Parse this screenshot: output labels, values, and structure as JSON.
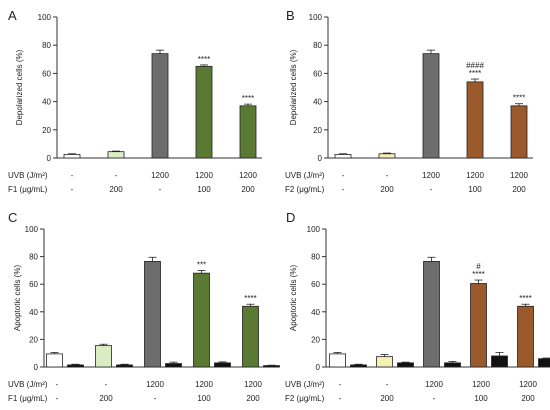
{
  "colors": {
    "white": "#ffffff",
    "light_green": "#d9ecc4",
    "light_yellow": "#f4f0b6",
    "gray": "#6d6d6d",
    "green": "#5a7a34",
    "brown": "#9a5a2c",
    "black": "#111111"
  },
  "chart_data": [
    {
      "type": "bar",
      "panel": "A",
      "ylabel": "Depolarized cells (%)",
      "ylim": [
        0,
        100
      ],
      "yticks": [
        0,
        20,
        40,
        60,
        80,
        100
      ],
      "row_labels": [
        "UVB (J/m²)",
        "F1 (μg/mL)"
      ],
      "rows": [
        [
          "-",
          "-",
          "1200",
          "1200",
          "1200"
        ],
        [
          "-",
          "200",
          "-",
          "100",
          "200"
        ]
      ],
      "groups": [
        {
          "bars": [
            {
              "value": 2.5,
              "error": 0.5,
              "color": "white"
            }
          ]
        },
        {
          "bars": [
            {
              "value": 4.5,
              "error": 0.4,
              "color": "light_green"
            }
          ]
        },
        {
          "bars": [
            {
              "value": 74,
              "error": 2.5,
              "color": "gray"
            }
          ]
        },
        {
          "bars": [
            {
              "value": 65,
              "error": 1.0,
              "color": "green",
              "annotation": "****"
            }
          ]
        },
        {
          "bars": [
            {
              "value": 37,
              "error": 1.2,
              "color": "green",
              "annotation": "****"
            }
          ]
        }
      ]
    },
    {
      "type": "bar",
      "panel": "B",
      "ylabel": "Depolarized cells (%)",
      "ylim": [
        0,
        100
      ],
      "yticks": [
        0,
        20,
        40,
        60,
        80,
        100
      ],
      "row_labels": [
        "UVB (J/m²)",
        "F2 (μg/mL)"
      ],
      "rows": [
        [
          "-",
          "-",
          "1200",
          "1200",
          "1200"
        ],
        [
          "-",
          "200",
          "-",
          "100",
          "200"
        ]
      ],
      "groups": [
        {
          "bars": [
            {
              "value": 2.5,
              "error": 0.5,
              "color": "white"
            }
          ]
        },
        {
          "bars": [
            {
              "value": 3.0,
              "error": 0.5,
              "color": "light_yellow"
            }
          ]
        },
        {
          "bars": [
            {
              "value": 74,
              "error": 2.5,
              "color": "gray"
            }
          ]
        },
        {
          "bars": [
            {
              "value": 54,
              "error": 2.0,
              "color": "brown",
              "annotation": "****",
              "annotation2": "####"
            }
          ]
        },
        {
          "bars": [
            {
              "value": 37,
              "error": 1.5,
              "color": "brown",
              "annotation": "****"
            }
          ]
        }
      ]
    },
    {
      "type": "bar",
      "panel": "C",
      "ylabel": "Apoptotic cells (%)",
      "ylim": [
        0,
        100
      ],
      "yticks": [
        0,
        20,
        40,
        60,
        80,
        100
      ],
      "row_labels": [
        "UVB (J/m²)",
        "F1 (μg/mL)"
      ],
      "rows": [
        [
          "-",
          "-",
          "1200",
          "1200",
          "1200"
        ],
        [
          "-",
          "200",
          "-",
          "100",
          "200"
        ]
      ],
      "groups": [
        {
          "bars": [
            {
              "value": 9.5,
              "error": 1.0,
              "color": "white"
            },
            {
              "value": 1.5,
              "error": 0.5,
              "color": "black"
            }
          ]
        },
        {
          "bars": [
            {
              "value": 15.5,
              "error": 1.0,
              "color": "light_green"
            },
            {
              "value": 1.5,
              "error": 0.5,
              "color": "black"
            }
          ]
        },
        {
          "bars": [
            {
              "value": 76.5,
              "error": 3.0,
              "color": "gray"
            },
            {
              "value": 2.5,
              "error": 1.0,
              "color": "black"
            }
          ]
        },
        {
          "bars": [
            {
              "value": 68,
              "error": 2.0,
              "color": "green",
              "annotation": "***"
            },
            {
              "value": 3.0,
              "error": 0.7,
              "color": "black"
            }
          ]
        },
        {
          "bars": [
            {
              "value": 44,
              "error": 1.5,
              "color": "green",
              "annotation": "****"
            },
            {
              "value": 1.0,
              "error": 0.3,
              "color": "black"
            }
          ]
        }
      ]
    },
    {
      "type": "bar",
      "panel": "D",
      "ylabel": "Apoptotic cells (%)",
      "ylim": [
        0,
        100
      ],
      "yticks": [
        0,
        20,
        40,
        60,
        80,
        100
      ],
      "row_labels": [
        "UVB (J/m²)",
        "F2 (μg/mL)"
      ],
      "rows": [
        [
          "-",
          "-",
          "1200",
          "1200",
          "1200"
        ],
        [
          "-",
          "200",
          "-",
          "100",
          "200"
        ]
      ],
      "groups": [
        {
          "bars": [
            {
              "value": 9.5,
              "error": 1.0,
              "color": "white"
            },
            {
              "value": 1.5,
              "error": 0.5,
              "color": "black"
            }
          ]
        },
        {
          "bars": [
            {
              "value": 7.5,
              "error": 1.5,
              "color": "light_yellow"
            },
            {
              "value": 3.0,
              "error": 0.5,
              "color": "black"
            }
          ]
        },
        {
          "bars": [
            {
              "value": 76.5,
              "error": 3.0,
              "color": "gray"
            },
            {
              "value": 3.0,
              "error": 1.0,
              "color": "black"
            }
          ]
        },
        {
          "bars": [
            {
              "value": 60.5,
              "error": 2.5,
              "color": "brown",
              "annotation": "****",
              "annotation2": "#"
            },
            {
              "value": 8.0,
              "error": 2.5,
              "color": "black"
            }
          ]
        },
        {
          "bars": [
            {
              "value": 44,
              "error": 1.5,
              "color": "brown",
              "annotation": "****"
            },
            {
              "value": 6.0,
              "error": 0.5,
              "color": "black"
            }
          ]
        }
      ]
    }
  ]
}
